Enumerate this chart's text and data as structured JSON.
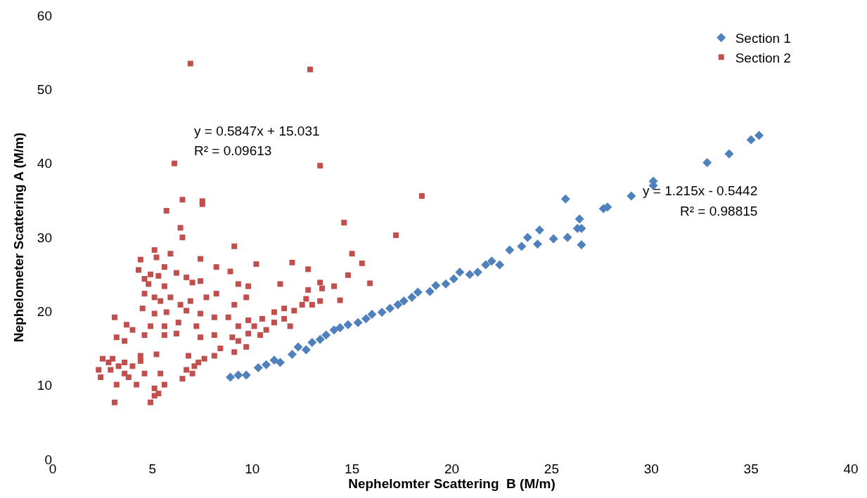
{
  "chart_data": {
    "type": "scatter",
    "xlabel": "Nephelomter Scattering  B (M/m)",
    "ylabel": "Nephelometer Scattering A (M/m)",
    "xlim": [
      0,
      40
    ],
    "xticks": [
      0,
      5,
      10,
      15,
      20,
      25,
      30,
      35,
      40
    ],
    "ylim": [
      0,
      60
    ],
    "yticks": [
      0,
      10,
      20,
      30,
      40,
      50,
      60
    ],
    "legend": "top right",
    "annotations": [
      "y = 0.5847x + 15.031",
      "R² = 0.09613",
      "y = 1.215x - 0.5442",
      "R² = 0.98815"
    ],
    "series": [
      {
        "name": "Section 1",
        "color": "#4f81bd",
        "marker": "diamond",
        "x": [
          8.9,
          9.3,
          9.7,
          10.3,
          10.7,
          11.1,
          11.4,
          12.0,
          12.3,
          12.7,
          13.0,
          13.4,
          13.7,
          14.1,
          14.4,
          14.8,
          15.3,
          15.7,
          16.0,
          16.5,
          16.9,
          17.3,
          17.6,
          18.0,
          18.3,
          18.9,
          19.2,
          19.7,
          20.1,
          20.4,
          20.9,
          21.3,
          21.7,
          22.0,
          22.4,
          22.9,
          23.5,
          23.8,
          24.3,
          24.4,
          25.1,
          25.7,
          25.8,
          26.3,
          26.4,
          26.5,
          26.5,
          27.6,
          27.8,
          29.0,
          30.1,
          30.1,
          32.8,
          33.9,
          35.0,
          35.4
        ],
        "values": [
          11.1,
          11.4,
          11.4,
          12.4,
          12.8,
          13.4,
          13.1,
          14.2,
          15.2,
          14.8,
          15.8,
          16.2,
          16.8,
          17.5,
          17.8,
          18.2,
          18.5,
          19.0,
          19.6,
          19.9,
          20.4,
          20.9,
          21.4,
          21.9,
          22.6,
          22.7,
          23.5,
          23.7,
          24.4,
          25.3,
          25.0,
          25.3,
          26.3,
          26.8,
          26.3,
          28.3,
          28.8,
          30.0,
          29.1,
          31.0,
          29.8,
          35.2,
          30.0,
          31.2,
          32.5,
          29.0,
          31.2,
          33.9,
          34.1,
          35.6,
          37.0,
          37.6,
          40.1,
          41.3,
          43.2,
          43.8
        ]
      },
      {
        "name": "Section 2",
        "color": "#c0504d",
        "marker": "square",
        "x": [
          6.9,
          12.9,
          6.1,
          13.4,
          18.5,
          6.5,
          7.5,
          7.5,
          5.7,
          14.6,
          17.2,
          6.4,
          6.5,
          9.1,
          15.0,
          15.5,
          10.2,
          12.0,
          12.8,
          8.9,
          8.2,
          7.4,
          5.9,
          5.1,
          5.2,
          4.4,
          4.3,
          15.9,
          14.8,
          13.4,
          13.5,
          14.1,
          11.4,
          12.8,
          14.4,
          13.4,
          4.6,
          4.8,
          4.9,
          5.3,
          5.6,
          6.2,
          6.7,
          7.0,
          7.4,
          5.6,
          4.6,
          5.1,
          5.4,
          5.9,
          6.4,
          6.9,
          7.7,
          8.2,
          4.5,
          5.1,
          5.7,
          6.7,
          7.4,
          8.1,
          8.8,
          9.1,
          9.7,
          9.8,
          9.3,
          6.3,
          5.6,
          4.9,
          4.0,
          4.6,
          5.6,
          6.2,
          7.2,
          7.4,
          8.1,
          9.0,
          9.3,
          9.8,
          10.1,
          10.5,
          11.1,
          11.6,
          12.1,
          12.5,
          12.7,
          13.0,
          11.1,
          11.6,
          11.9,
          10.4,
          10.7,
          9.8,
          9.3,
          3.1,
          3.7,
          3.6,
          3.2,
          2.5,
          2.8,
          3.0,
          3.3,
          3.6,
          4.0,
          4.4,
          2.3,
          2.4,
          2.9,
          3.2,
          3.6,
          3.8,
          4.2,
          4.6,
          4.4,
          5.2,
          5.4,
          5.1,
          5.1,
          5.3,
          4.9,
          5.6,
          6.5,
          6.7,
          7.0,
          7.3,
          7.6,
          6.8,
          7.1,
          3.1,
          8.1,
          8.4,
          9.1,
          9.7
        ],
        "values": [
          53.5,
          52.7,
          40.0,
          39.7,
          35.6,
          35.1,
          34.9,
          34.5,
          33.6,
          32.0,
          30.3,
          31.3,
          30.0,
          28.8,
          27.8,
          26.5,
          26.4,
          26.6,
          25.7,
          25.4,
          26.0,
          27.1,
          27.8,
          28.3,
          27.3,
          27.0,
          25.6,
          23.8,
          24.9,
          23.9,
          23.1,
          23.4,
          23.7,
          22.9,
          21.5,
          21.4,
          24.4,
          23.7,
          25.0,
          24.8,
          26.0,
          25.2,
          24.6,
          23.9,
          24.1,
          23.4,
          22.4,
          21.9,
          21.4,
          21.9,
          20.9,
          21.4,
          21.9,
          22.4,
          20.4,
          19.7,
          19.9,
          20.1,
          19.7,
          19.2,
          19.2,
          20.9,
          21.9,
          23.4,
          23.7,
          18.5,
          18.0,
          18.0,
          17.5,
          16.8,
          16.8,
          17.0,
          18.0,
          16.5,
          16.8,
          16.5,
          16.0,
          17.0,
          18.0,
          19.0,
          19.9,
          20.4,
          20.1,
          20.9,
          21.7,
          20.9,
          18.5,
          19.0,
          18.0,
          16.8,
          17.5,
          18.8,
          18.0,
          19.2,
          18.2,
          16.0,
          16.5,
          13.6,
          13.1,
          13.6,
          12.6,
          13.1,
          12.6,
          13.3,
          12.1,
          11.1,
          12.1,
          10.1,
          11.6,
          11.1,
          10.1,
          11.6,
          14.0,
          14.2,
          11.6,
          9.6,
          8.6,
          8.9,
          7.7,
          10.1,
          10.9,
          12.1,
          11.6,
          13.1,
          13.6,
          14.0,
          12.6,
          7.7,
          14.0,
          15.0,
          14.5,
          15.2
        ]
      }
    ]
  }
}
